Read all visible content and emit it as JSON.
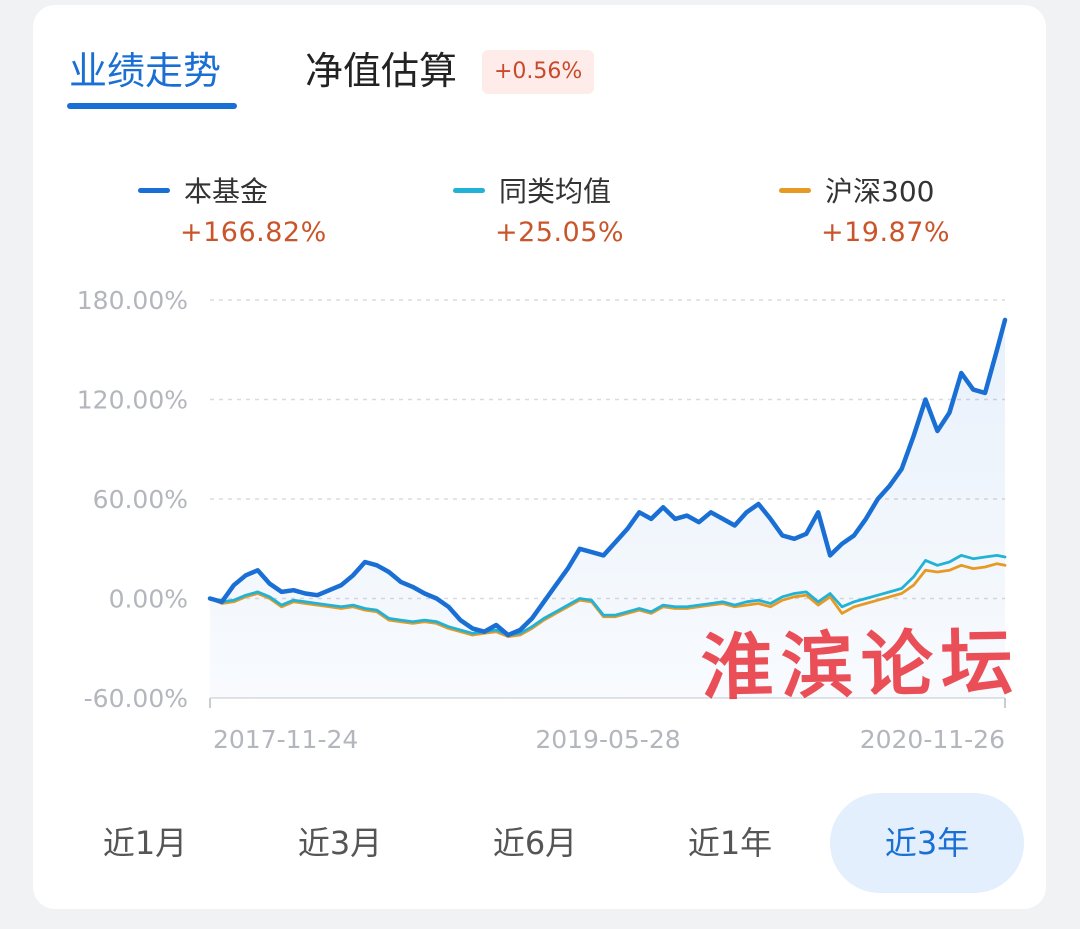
{
  "tabs": {
    "performance": "业绩走势",
    "estimate": "净值估算",
    "estimate_change": "+0.56%"
  },
  "legend": [
    {
      "name": "本基金",
      "value": "+166.82%",
      "color": "#1a6fd4"
    },
    {
      "name": "同类均值",
      "value": "+25.05%",
      "color": "#22b2d6"
    },
    {
      "name": "沪深300",
      "value": "+19.87%",
      "color": "#e69a24"
    }
  ],
  "watermark": "淮滨论坛",
  "periods": [
    {
      "label": "近1月",
      "active": false
    },
    {
      "label": "近3月",
      "active": false
    },
    {
      "label": "近6月",
      "active": false
    },
    {
      "label": "近1年",
      "active": false
    },
    {
      "label": "近3年",
      "active": true
    }
  ],
  "chart_data": {
    "type": "line",
    "ylim": [
      -60,
      180
    ],
    "yticks": [
      180,
      120,
      60,
      0,
      -60
    ],
    "ytick_labels": [
      "180.00%",
      "120.00%",
      "60.00%",
      "0.00%",
      "-60.00%"
    ],
    "xtick_labels": [
      "2017-11-24",
      "2019-05-28",
      "2020-11-26"
    ],
    "grid": true,
    "x_index": [
      0,
      15,
      30,
      45,
      60,
      75,
      90,
      105,
      120,
      135,
      150,
      165,
      180,
      195,
      210,
      225,
      240,
      255,
      270,
      285,
      300,
      315,
      330,
      345,
      360,
      375,
      390,
      405,
      420,
      435,
      450,
      465,
      480,
      495,
      510,
      525,
      540,
      555,
      570,
      585,
      600,
      615,
      630,
      645,
      660,
      675,
      690,
      705,
      720,
      735,
      750,
      765,
      780,
      795,
      810,
      825,
      840,
      855,
      870,
      885,
      900,
      915,
      930,
      945,
      960,
      975,
      990,
      1000
    ],
    "series": [
      {
        "name": "本基金",
        "color": "#1a6fd4",
        "values": [
          0,
          -2,
          8,
          14,
          17,
          9,
          4,
          5,
          3,
          2,
          5,
          8,
          14,
          22,
          20,
          16,
          10,
          7,
          3,
          0,
          -5,
          -13,
          -18,
          -20,
          -16,
          -22,
          -19,
          -12,
          -2,
          8,
          18,
          30,
          28,
          26,
          34,
          42,
          52,
          48,
          55,
          48,
          50,
          46,
          52,
          48,
          44,
          52,
          57,
          48,
          38,
          36,
          39,
          52,
          26,
          33,
          38,
          48,
          60,
          68,
          78,
          98,
          120,
          101,
          112,
          136,
          126,
          124,
          150,
          168
        ]
      },
      {
        "name": "同类均值",
        "color": "#22b2d6",
        "values": [
          0,
          -2,
          -1,
          2,
          4,
          1,
          -4,
          -1,
          -2,
          -3,
          -4,
          -5,
          -4,
          -6,
          -7,
          -12,
          -13,
          -14,
          -13,
          -14,
          -17,
          -19,
          -21,
          -20,
          -19,
          -22,
          -21,
          -17,
          -12,
          -8,
          -4,
          0,
          -1,
          -10,
          -10,
          -8,
          -6,
          -8,
          -4,
          -5,
          -5,
          -4,
          -3,
          -2,
          -4,
          -2,
          -1,
          -3,
          1,
          3,
          4,
          -2,
          3,
          -5,
          -2,
          0,
          2,
          4,
          6,
          13,
          23,
          20,
          22,
          26,
          24,
          25,
          26,
          25
        ]
      },
      {
        "name": "沪深300",
        "color": "#e69a24",
        "values": [
          0,
          -3,
          -2,
          1,
          3,
          0,
          -5,
          -2,
          -3,
          -4,
          -5,
          -6,
          -5,
          -7,
          -8,
          -13,
          -14,
          -15,
          -14,
          -15,
          -18,
          -20,
          -22,
          -21,
          -20,
          -23,
          -22,
          -18,
          -13,
          -9,
          -5,
          -1,
          -2,
          -11,
          -11,
          -9,
          -7,
          -9,
          -5,
          -6,
          -6,
          -5,
          -4,
          -3,
          -5,
          -4,
          -3,
          -5,
          -1,
          1,
          2,
          -4,
          1,
          -9,
          -5,
          -3,
          -1,
          1,
          3,
          8,
          17,
          16,
          17,
          20,
          18,
          19,
          21,
          20
        ]
      }
    ]
  }
}
